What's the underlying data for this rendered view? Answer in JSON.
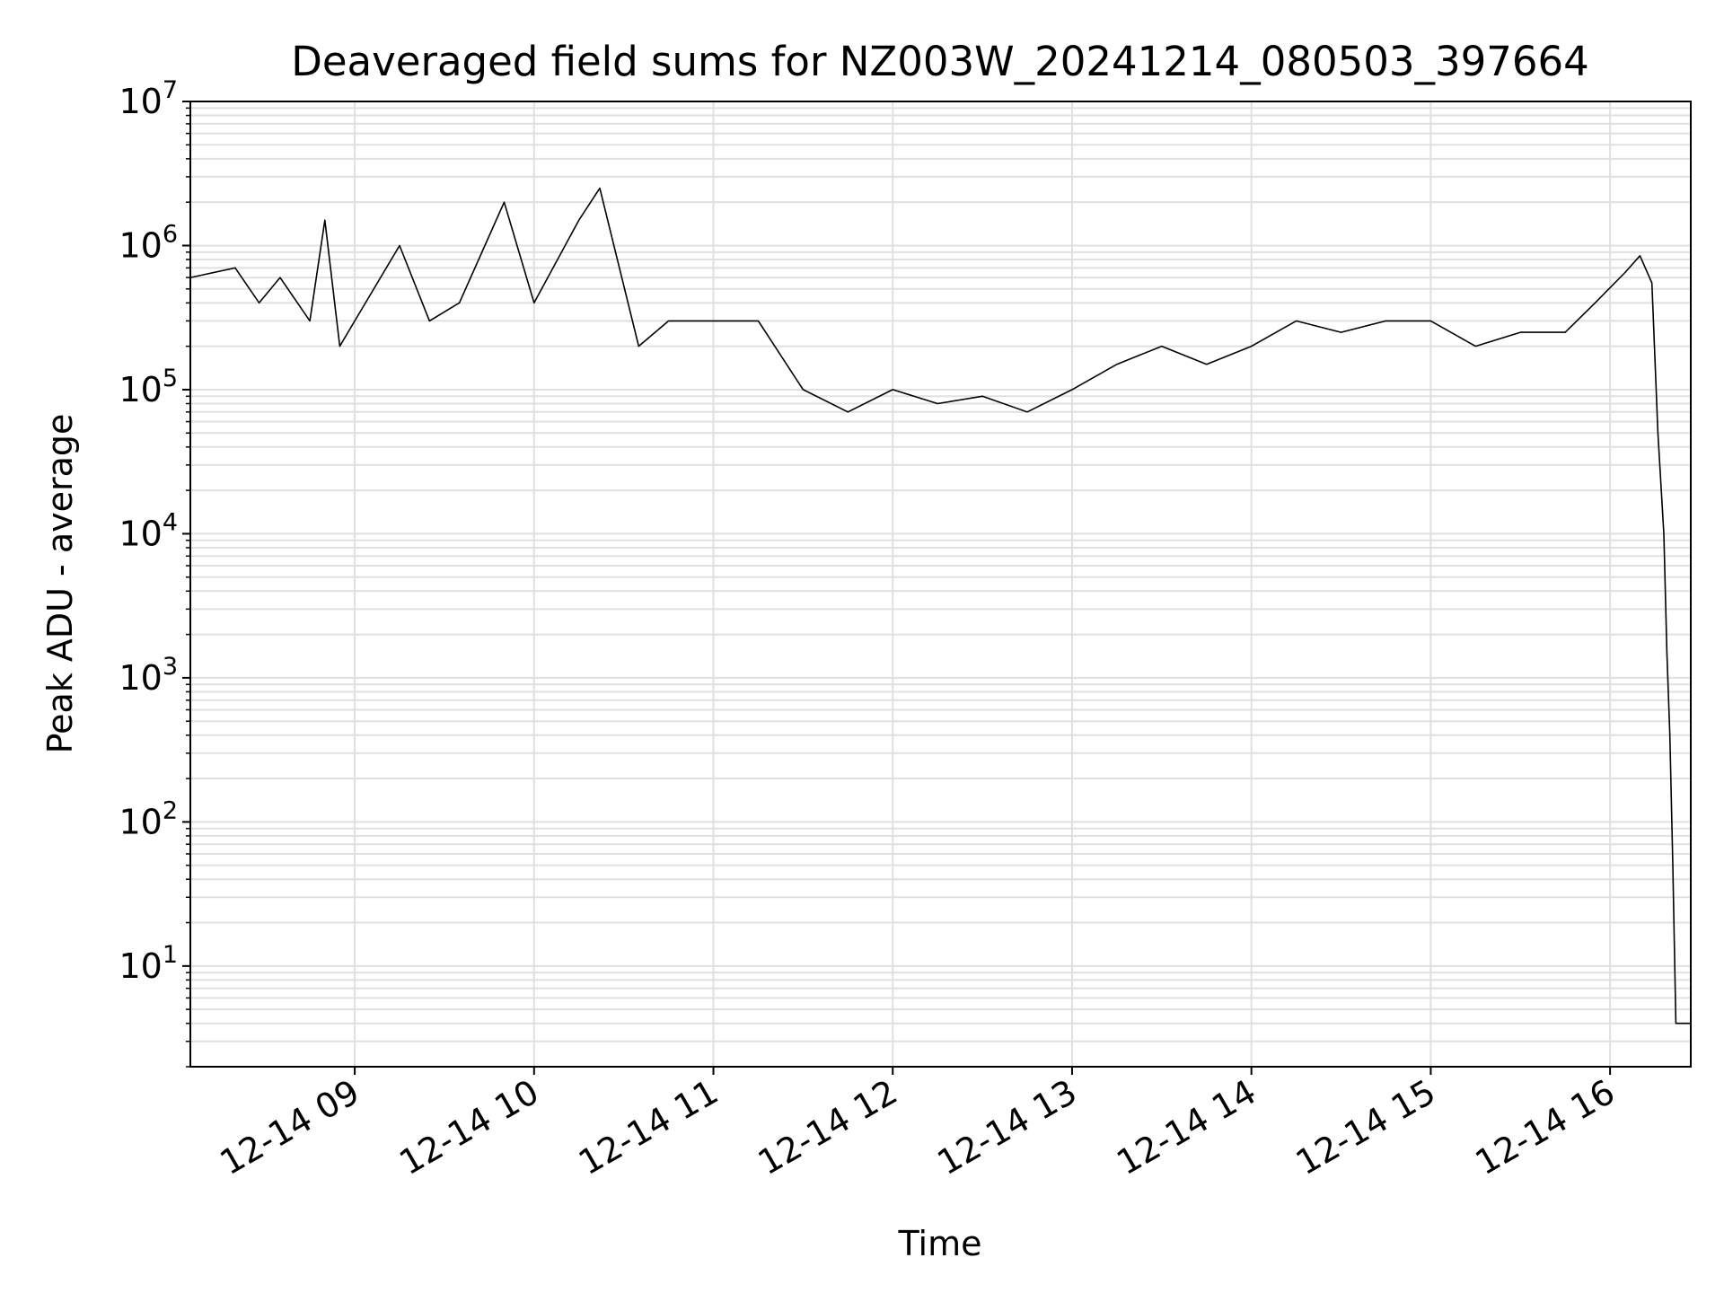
{
  "chart_data": {
    "type": "line",
    "title": "Deaveraged field sums for NZ003W_20241214_080503_397664",
    "xlabel": "Time",
    "ylabel": "Peak ADU - average",
    "yscale": "log",
    "ylim": [
      2,
      10000000
    ],
    "xlim": [
      "2024-12-14 08:05",
      "2024-12-16 16:27"
    ],
    "grid": true,
    "x_ticks": [
      "12-14 09",
      "12-14 10",
      "12-14 11",
      "12-14 12",
      "12-14 13",
      "12-14 14",
      "12-14 15",
      "12-14 16"
    ],
    "y_ticks": [
      {
        "base": "10",
        "exp": "1",
        "value": 10
      },
      {
        "base": "10",
        "exp": "2",
        "value": 100
      },
      {
        "base": "10",
        "exp": "3",
        "value": 1000
      },
      {
        "base": "10",
        "exp": "4",
        "value": 10000
      },
      {
        "base": "10",
        "exp": "5",
        "value": 100000
      },
      {
        "base": "10",
        "exp": "6",
        "value": 1000000
      },
      {
        "base": "10",
        "exp": "7",
        "value": 10000000
      }
    ],
    "line_color": "#000000",
    "grid_color": "#e0e0e0",
    "series": [
      {
        "name": "",
        "x": [
          "12-14 08:05",
          "12-14 08:20",
          "12-14 08:28",
          "12-14 08:35",
          "12-14 08:45",
          "12-14 08:50",
          "12-14 08:55",
          "12-14 09:00",
          "12-14 09:15",
          "12-14 09:25",
          "12-14 09:35",
          "12-14 09:50",
          "12-14 10:00",
          "12-14 10:15",
          "12-14 10:22",
          "12-14 10:35",
          "12-14 10:45",
          "12-14 11:00",
          "12-14 11:15",
          "12-14 11:30",
          "12-14 11:45",
          "12-14 12:00",
          "12-14 12:15",
          "12-14 12:30",
          "12-14 12:45",
          "12-14 13:00",
          "12-14 13:15",
          "12-14 13:30",
          "12-14 13:45",
          "12-14 14:00",
          "12-14 14:15",
          "12-14 14:30",
          "12-14 14:45",
          "12-14 15:00",
          "12-14 15:15",
          "12-14 15:30",
          "12-14 15:45",
          "12-14 15:55",
          "12-14 16:05",
          "12-14 16:10",
          "12-14 16:14",
          "12-14 16:16",
          "12-14 16:18",
          "12-14 16:19",
          "12-14 16:20",
          "12-14 16:21",
          "12-14 16:22",
          "12-14 16:27"
        ],
        "y": [
          600000,
          700000,
          400000,
          600000,
          300000,
          1500000,
          200000,
          300000,
          1000000,
          300000,
          400000,
          2000000,
          400000,
          1500000,
          2500000,
          200000,
          300000,
          300000,
          300000,
          100000,
          70000,
          100000,
          80000,
          90000,
          70000,
          100000,
          150000,
          200000,
          150000,
          200000,
          300000,
          250000,
          300000,
          300000,
          200000,
          250000,
          250000,
          400000,
          650000,
          850000,
          550000,
          50000,
          10000,
          1500,
          400,
          50,
          4,
          4
        ]
      }
    ]
  }
}
